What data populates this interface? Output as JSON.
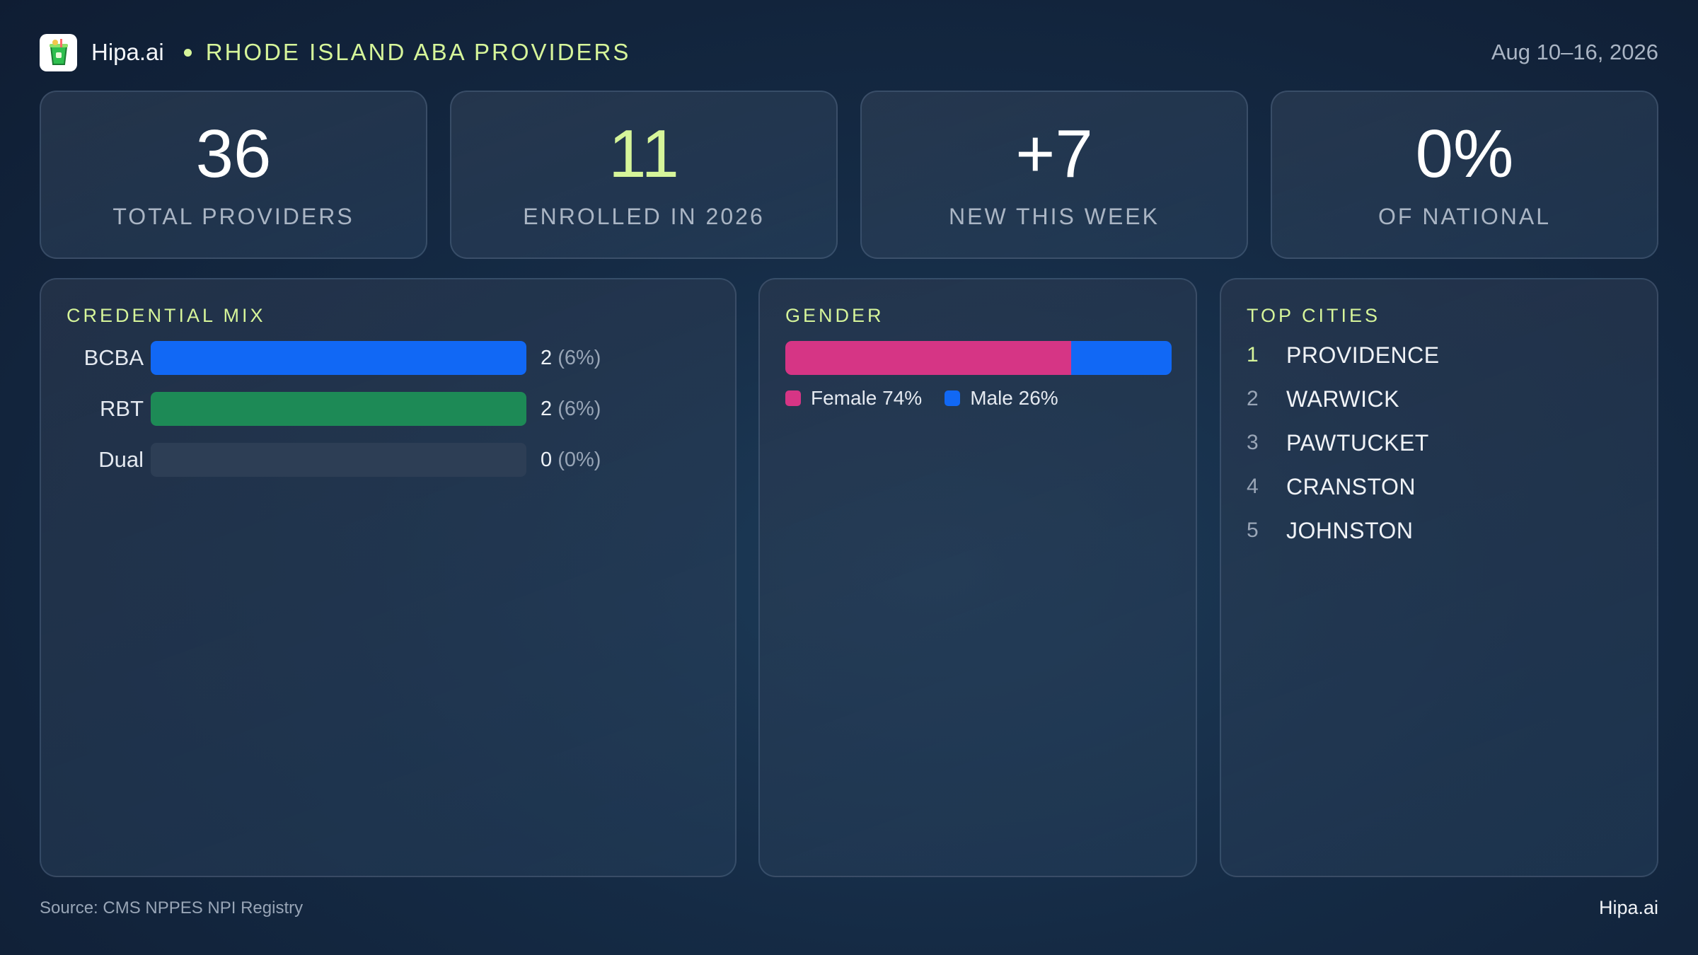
{
  "header": {
    "brand": "Hipa.ai",
    "title": "RHODE ISLAND ABA PROVIDERS",
    "date_range": "Aug 10–16, 2026"
  },
  "stats": [
    {
      "value": "36",
      "label": "TOTAL PROVIDERS"
    },
    {
      "value": "11",
      "label": "ENROLLED IN 2026"
    },
    {
      "value": "+7",
      "label": "NEW THIS WEEK"
    },
    {
      "value": "0%",
      "label": "OF NATIONAL"
    }
  ],
  "credential_mix": {
    "title": "CREDENTIAL MIX",
    "rows": [
      {
        "label": "BCBA",
        "count": "2",
        "pct": "(6%)",
        "fill": 1.0,
        "color": "#1168f5"
      },
      {
        "label": "RBT",
        "count": "2",
        "pct": "(6%)",
        "fill": 1.0,
        "color": "#1d8a56"
      },
      {
        "label": "Dual",
        "count": "0",
        "pct": "(0%)",
        "fill": 0.0,
        "color": "#2d3e55"
      }
    ]
  },
  "gender": {
    "title": "GENDER",
    "female_label": "Female 74%",
    "male_label": "Male 26%",
    "female_share": 0.74,
    "male_share": 0.26,
    "female_color": "#d63585",
    "male_color": "#1168f5"
  },
  "top_cities": {
    "title": "TOP CITIES",
    "items": [
      {
        "rank": "1",
        "name": "PROVIDENCE"
      },
      {
        "rank": "2",
        "name": "WARWICK"
      },
      {
        "rank": "3",
        "name": "PAWTUCKET"
      },
      {
        "rank": "4",
        "name": "CRANSTON"
      },
      {
        "rank": "5",
        "name": "JOHNSTON"
      }
    ]
  },
  "footer": {
    "source": "Source: CMS NPPES NPI Registry",
    "brand": "Hipa.ai"
  }
}
